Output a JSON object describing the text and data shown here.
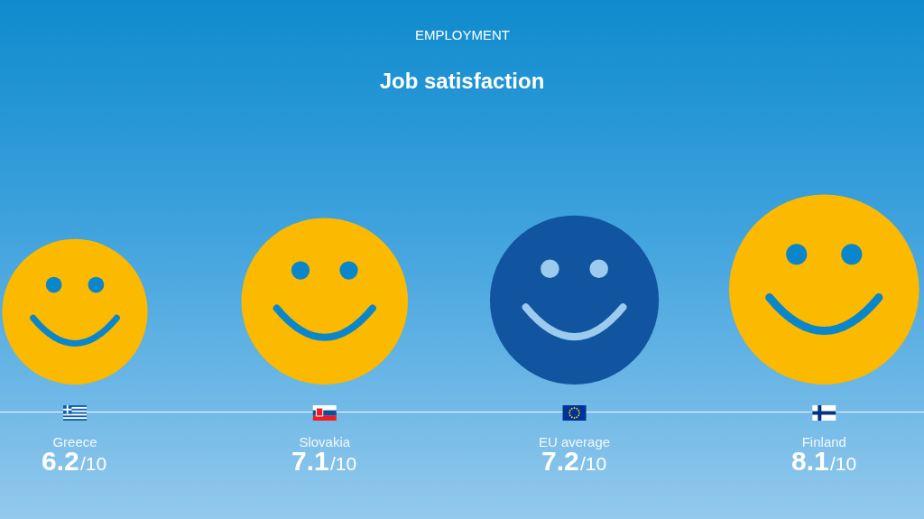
{
  "chart_data": {
    "type": "other",
    "subtitle": "EMPLOYMENT",
    "title": "Job satisfaction",
    "categories": [
      "Greece",
      "Slovakia",
      "EU average",
      "Finland"
    ],
    "values": [
      6.2,
      7.1,
      7.2,
      8.1
    ],
    "colors": [
      "#fbb900",
      "#fbb900",
      "#1155a0",
      "#fbb900"
    ],
    "data_labels": true,
    "annotations": [
      {
        "text": "/10",
        "x": "Greece"
      },
      {
        "text": "/10",
        "x": "Slovakia"
      },
      {
        "text": "/10",
        "x": "EU average"
      },
      {
        "text": "/10",
        "x": "Finland"
      }
    ]
  }
}
